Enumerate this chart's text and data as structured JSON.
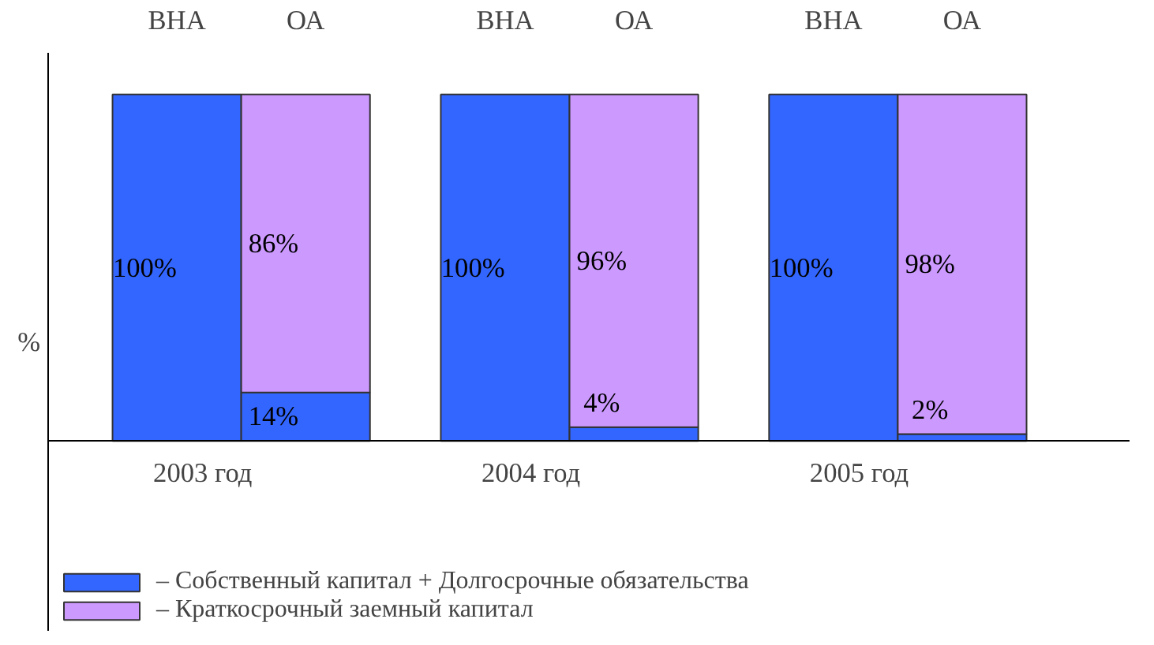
{
  "chart_data": {
    "type": "bar",
    "stacked": true,
    "ylabel": "%",
    "categories": [
      "ВНА",
      "ОА",
      "ВНА",
      "ОА",
      "ВНА",
      "ОА"
    ],
    "annotations": [
      "2003 год",
      "2004 год",
      "2005 год"
    ],
    "series": [
      {
        "name": "– Собственный капитал + Долгосрочные обязательства",
        "color": "#3366ff",
        "values": [
          100,
          14,
          100,
          4,
          100,
          2
        ],
        "value_labels": [
          "100%",
          "14%",
          "100%",
          "4%",
          "100%",
          "2%"
        ]
      },
      {
        "name": "– Краткосрочный заемный капитал",
        "color": "#cc99ff",
        "values": [
          0,
          86,
          0,
          96,
          0,
          98
        ],
        "value_labels": [
          null,
          "86%",
          null,
          "96%",
          null,
          "98%"
        ]
      }
    ],
    "legend": "bottom left"
  }
}
